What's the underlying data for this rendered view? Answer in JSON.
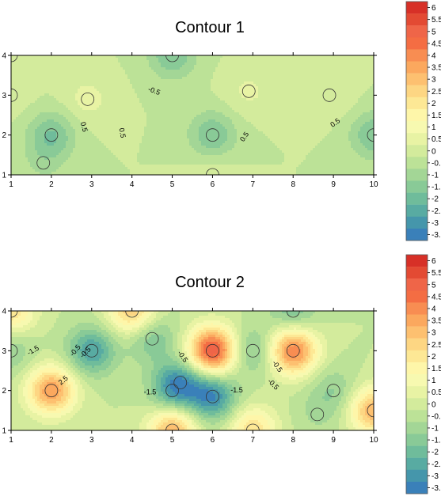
{
  "chart_data": [
    {
      "type": "heatmap",
      "subtype": "filled-contour",
      "title": "Contour 1",
      "xlabel": "",
      "ylabel": "",
      "xlim": [
        1,
        10
      ],
      "ylim": [
        1,
        4
      ],
      "x_ticks": [
        "1",
        "2",
        "3",
        "4",
        "5",
        "6",
        "7",
        "8",
        "9",
        "10"
      ],
      "y_ticks": [
        "1",
        "2",
        "3",
        "4"
      ],
      "grid": false,
      "colorbar": {
        "placement": "right",
        "levels": [
          "6",
          "5.5",
          "5",
          "4.5",
          "4",
          "3.5",
          "3",
          "2.5",
          "2",
          "1.5",
          "1",
          "0.5",
          "0",
          "-0.5",
          "-1",
          "-1.5",
          "-2",
          "-2.5",
          "-3",
          "-3.5"
        ],
        "colors": [
          "#d73027",
          "#e34a33",
          "#ef6548",
          "#f46d43",
          "#f88d52",
          "#fba85e",
          "#fdc070",
          "#fdd683",
          "#fde895",
          "#fef6a9",
          "#f7f9b0",
          "#e8f3a4",
          "#d3eb9c",
          "#bce297",
          "#a3d696",
          "#89ca97",
          "#6fbc9b",
          "#58aba2",
          "#4596ab",
          "#3a80b9"
        ]
      },
      "field_extrema": [
        {
          "x": 2,
          "y": 2,
          "value": -1.5
        },
        {
          "x": 10,
          "y": 2,
          "value": -1.5
        },
        {
          "x": 6,
          "y": 2,
          "value": -1.5
        },
        {
          "x": 5,
          "y": 4,
          "value": -1.5
        },
        {
          "x": 1.8,
          "y": 1.3,
          "value": -0.5
        },
        {
          "x": 2.9,
          "y": 2.9,
          "value": 0.7
        },
        {
          "x": 6.9,
          "y": 3.1,
          "value": 0.6
        },
        {
          "x": 8.9,
          "y": 3.0,
          "value": 0.5
        },
        {
          "x": 6.0,
          "y": 1.0,
          "value": 0.4
        },
        {
          "x": 1.0,
          "y": 3.0,
          "value": 0.3
        },
        {
          "x": 1.0,
          "y": 4.0,
          "value": 0.3
        }
      ],
      "contour_labels": [
        {
          "text": "-0.5",
          "x": 4.55,
          "y": 3.1,
          "angle": 20
        },
        {
          "text": "0.5",
          "x": 2.8,
          "y": 2.2,
          "angle": 75
        },
        {
          "text": "0.5",
          "x": 3.75,
          "y": 2.05,
          "angle": 80
        },
        {
          "text": "0.5",
          "x": 6.8,
          "y": 1.95,
          "angle": -55
        },
        {
          "text": "0.5",
          "x": 9.05,
          "y": 2.3,
          "angle": -35
        }
      ]
    },
    {
      "type": "heatmap",
      "subtype": "filled-contour",
      "title": "Contour 2",
      "xlabel": "",
      "ylabel": "",
      "xlim": [
        1,
        10
      ],
      "ylim": [
        1,
        4
      ],
      "x_ticks": [
        "1",
        "2",
        "3",
        "4",
        "5",
        "6",
        "7",
        "8",
        "9",
        "10"
      ],
      "y_ticks": [
        "1",
        "2",
        "3",
        "4"
      ],
      "grid": false,
      "colorbar": {
        "placement": "right",
        "levels": [
          "6",
          "5.5",
          "5",
          "4.5",
          "4",
          "3.5",
          "3",
          "2.5",
          "2",
          "1.5",
          "1",
          "0.5",
          "0",
          "-0.5",
          "-1",
          "-1.5",
          "-2",
          "-2.5",
          "-3",
          "-3.5"
        ],
        "colors": [
          "#d73027",
          "#e34a33",
          "#ef6548",
          "#f46d43",
          "#f88d52",
          "#fba85e",
          "#fdc070",
          "#fdd683",
          "#fde895",
          "#fef6a9",
          "#f7f9b0",
          "#e8f3a4",
          "#d3eb9c",
          "#bce297",
          "#a3d696",
          "#89ca97",
          "#6fbc9b",
          "#58aba2",
          "#4596ab",
          "#3a80b9"
        ]
      },
      "field_extrema": [
        {
          "x": 6,
          "y": 3,
          "value": 5.5
        },
        {
          "x": 8,
          "y": 3,
          "value": 4.5
        },
        {
          "x": 2,
          "y": 2,
          "value": 4.0
        },
        {
          "x": 10,
          "y": 1.5,
          "value": 3.5
        },
        {
          "x": 5,
          "y": 1,
          "value": 3.5
        },
        {
          "x": 4,
          "y": 4,
          "value": 3.0
        },
        {
          "x": 1,
          "y": 4,
          "value": 2.5
        },
        {
          "x": 7,
          "y": 1,
          "value": 2.5
        },
        {
          "x": 1,
          "y": 3,
          "value": -1.0
        },
        {
          "x": 3,
          "y": 3,
          "value": -2.5
        },
        {
          "x": 6,
          "y": 1.85,
          "value": -3.0
        },
        {
          "x": 5.2,
          "y": 2.2,
          "value": -2.0
        },
        {
          "x": 7,
          "y": 3,
          "value": -1.5
        },
        {
          "x": 5,
          "y": 2,
          "value": -1.5
        },
        {
          "x": 8,
          "y": 4,
          "value": -1.5
        },
        {
          "x": 9,
          "y": 2,
          "value": -1.0
        },
        {
          "x": 4.5,
          "y": 3.3,
          "value": -1.5
        },
        {
          "x": 8.6,
          "y": 1.4,
          "value": -0.5
        }
      ],
      "contour_labels": [
        {
          "text": "-1.5",
          "x": 1.55,
          "y": 3.0,
          "angle": -30
        },
        {
          "text": "2.5",
          "x": 2.3,
          "y": 2.25,
          "angle": -40
        },
        {
          "text": "-0.5",
          "x": 2.6,
          "y": 3.0,
          "angle": -50
        },
        {
          "text": "-0.5",
          "x": 2.85,
          "y": 2.95,
          "angle": -45
        },
        {
          "text": "-1.5",
          "x": 4.45,
          "y": 1.95,
          "angle": 0
        },
        {
          "text": "-0.5",
          "x": 5.25,
          "y": 2.85,
          "angle": 55
        },
        {
          "text": "-1.5",
          "x": 6.6,
          "y": 2.0,
          "angle": 0
        },
        {
          "text": "-0.5",
          "x": 7.5,
          "y": 2.15,
          "angle": 45
        },
        {
          "text": "-0.5",
          "x": 7.6,
          "y": 2.6,
          "angle": 55
        }
      ]
    }
  ]
}
